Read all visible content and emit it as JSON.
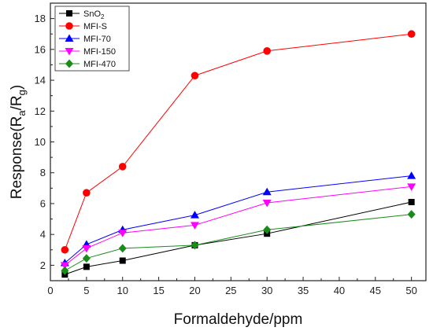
{
  "chart_data": {
    "type": "line",
    "xlabel": "Formaldehyde/ppm",
    "ylabel_parts": {
      "a": "Response(R",
      "b": "a",
      "c": "/R",
      "d": "g",
      "e": ")"
    },
    "xlim": [
      0,
      52
    ],
    "ylim": [
      1,
      19
    ],
    "xticks": [
      0,
      5,
      10,
      15,
      20,
      25,
      30,
      35,
      40,
      45,
      50
    ],
    "yticks": [
      2,
      4,
      6,
      8,
      10,
      12,
      14,
      16,
      18
    ],
    "grid": false,
    "legend_position": "top-left",
    "x": [
      2,
      5,
      10,
      20,
      30,
      50
    ],
    "series": [
      {
        "name": "SnO",
        "name_sub": "2",
        "values": [
          1.4,
          1.9,
          2.3,
          3.3,
          4.05,
          6.1
        ],
        "color": "#000000",
        "marker": "square"
      },
      {
        "name": "MFI-S",
        "values": [
          3.0,
          6.7,
          8.4,
          14.3,
          15.9,
          17.0
        ],
        "color": "#ff0000",
        "marker": "circle"
      },
      {
        "name": "MFI-70",
        "values": [
          2.15,
          3.35,
          4.3,
          5.25,
          6.75,
          7.8
        ],
        "color": "#0000ff",
        "marker": "triangle-up"
      },
      {
        "name": "MFI-150",
        "values": [
          2.0,
          3.1,
          4.1,
          4.6,
          6.05,
          7.1
        ],
        "color": "#ff00ff",
        "marker": "triangle-down"
      },
      {
        "name": "MFI-470",
        "values": [
          1.65,
          2.45,
          3.1,
          3.3,
          4.3,
          5.3
        ],
        "color": "#1a8c1a",
        "marker": "diamond"
      }
    ]
  }
}
